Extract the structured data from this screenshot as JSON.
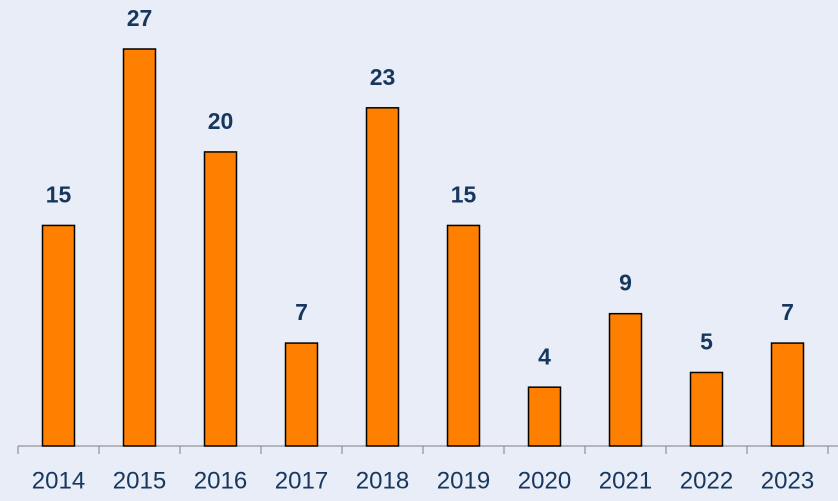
{
  "chart_data": {
    "type": "bar",
    "categories": [
      "2014",
      "2015",
      "2016",
      "2017",
      "2018",
      "2019",
      "2020",
      "2021",
      "2022",
      "2023"
    ],
    "values": [
      15,
      27,
      20,
      7,
      23,
      15,
      4,
      9,
      5,
      7
    ],
    "color": "#ff7f00"
  }
}
